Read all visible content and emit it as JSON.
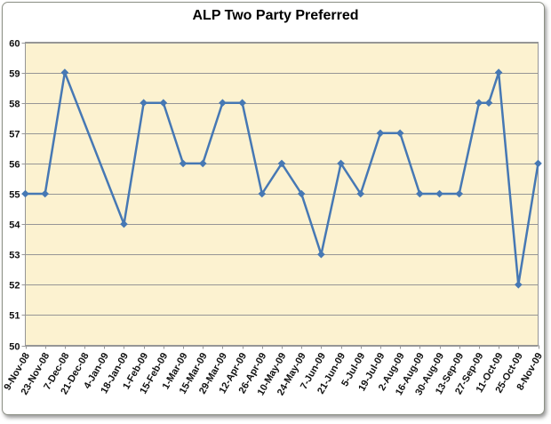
{
  "window": {
    "background": "#ffffff",
    "frame_border_color": "#8d9186"
  },
  "chart_data": {
    "type": "line",
    "title": "ALP Two Party Preferred",
    "xlabel": "",
    "ylabel": "",
    "ylim": [
      50,
      60
    ],
    "y_tick_labels": [
      "50",
      "51",
      "52",
      "53",
      "54",
      "55",
      "56",
      "57",
      "58",
      "59",
      "60"
    ],
    "x_labels": [
      "9-Nov-08",
      "23-Nov-08",
      "7-Dec-08",
      "21-Dec-08",
      "4-Jan-09",
      "18-Jan-09",
      "1-Feb-09",
      "15-Feb-09",
      "1-Mar-09",
      "15-Mar-09",
      "29-Mar-09",
      "12-Apr-09",
      "26-Apr-09",
      "10-May-09",
      "24-May-09",
      "7-Jun-09",
      "21-Jun-09",
      "5-Jul-09",
      "19-Jul-09",
      "2-Aug-09",
      "16-Aug-09",
      "30-Aug-09",
      "13-Sep-09",
      "27-Sep-09",
      "11-Oct-09",
      "25-Oct-09",
      "8-Nov-09"
    ],
    "grid": "horizontal",
    "legend": "none",
    "plot_bg": "#FCF2D0",
    "grid_color": "#969696",
    "line_color": "#4678B4",
    "marker": "diamond",
    "series": [
      {
        "name": "ALP Two Party Preferred",
        "points": [
          {
            "x": 0,
            "y": 55
          },
          {
            "x": 1,
            "y": 55
          },
          {
            "x": 2,
            "y": 59
          },
          {
            "x": 5,
            "y": 54
          },
          {
            "x": 6,
            "y": 58
          },
          {
            "x": 7,
            "y": 58
          },
          {
            "x": 8,
            "y": 56
          },
          {
            "x": 9,
            "y": 56
          },
          {
            "x": 10,
            "y": 58
          },
          {
            "x": 11,
            "y": 58
          },
          {
            "x": 12,
            "y": 55
          },
          {
            "x": 13,
            "y": 56
          },
          {
            "x": 14,
            "y": 55
          },
          {
            "x": 15,
            "y": 53
          },
          {
            "x": 16,
            "y": 56
          },
          {
            "x": 17,
            "y": 55
          },
          {
            "x": 18,
            "y": 57
          },
          {
            "x": 19,
            "y": 57
          },
          {
            "x": 20,
            "y": 55
          },
          {
            "x": 21,
            "y": 55
          },
          {
            "x": 22,
            "y": 55
          },
          {
            "x": 23,
            "y": 58
          },
          {
            "x": 23.5,
            "y": 58
          },
          {
            "x": 24,
            "y": 59
          },
          {
            "x": 25,
            "y": 52
          },
          {
            "x": 26,
            "y": 56
          }
        ]
      }
    ]
  }
}
